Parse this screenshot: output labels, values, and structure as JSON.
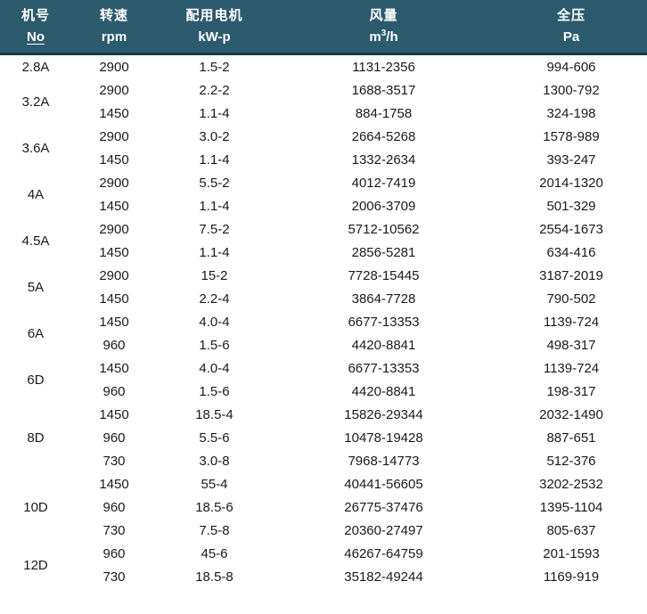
{
  "colors": {
    "header_bg": "#2d5b6e",
    "header_border": "#16384a",
    "header_text": "#ffffff",
    "body_text": "#1a1a1a"
  },
  "header": {
    "columns": [
      {
        "zh": "机号",
        "line2": "No",
        "underlined": true
      },
      {
        "zh": "转速",
        "line2": "rpm"
      },
      {
        "zh": "配用电机",
        "line2": "kW-p"
      },
      {
        "zh": "风量",
        "unit_base": "m",
        "unit_sup": "3",
        "unit_rest": "/h"
      },
      {
        "zh": "全压",
        "line2": "Pa"
      }
    ]
  },
  "groups": [
    {
      "model": "2.8A",
      "rows": [
        [
          "2900",
          "1.5-2",
          "1131-2356",
          "994-606"
        ]
      ]
    },
    {
      "model": "3.2A",
      "rows": [
        [
          "2900",
          "2.2-2",
          "1688-3517",
          "1300-792"
        ],
        [
          "1450",
          "1.1-4",
          "884-1758",
          "324-198"
        ]
      ]
    },
    {
      "model": "3.6A",
      "rows": [
        [
          "2900",
          "3.0-2",
          "2664-5268",
          "1578-989"
        ],
        [
          "1450",
          "1.1-4",
          "1332-2634",
          "393-247"
        ]
      ]
    },
    {
      "model": "4A",
      "rows": [
        [
          "2900",
          "5.5-2",
          "4012-7419",
          "2014-1320"
        ],
        [
          "1450",
          "1.1-4",
          "2006-3709",
          "501-329"
        ]
      ]
    },
    {
      "model": "4.5A",
      "rows": [
        [
          "2900",
          "7.5-2",
          "5712-10562",
          "2554-1673"
        ],
        [
          "1450",
          "1.1-4",
          "2856-5281",
          "634-416"
        ]
      ]
    },
    {
      "model": "5A",
      "rows": [
        [
          "2900",
          "15-2",
          "7728-15445",
          "3187-2019"
        ],
        [
          "1450",
          "2.2-4",
          "3864-7728",
          "790-502"
        ]
      ]
    },
    {
      "model": "6A",
      "rows": [
        [
          "1450",
          "4.0-4",
          "6677-13353",
          "1139-724"
        ],
        [
          "960",
          "1.5-6",
          "4420-8841",
          "498-317"
        ]
      ]
    },
    {
      "model": "6D",
      "rows": [
        [
          "1450",
          "4.0-4",
          "6677-13353",
          "1139-724"
        ],
        [
          "960",
          "1.5-6",
          "4420-8841",
          "198-317"
        ]
      ]
    },
    {
      "model": "8D",
      "rows": [
        [
          "1450",
          "18.5-4",
          "15826-29344",
          "2032-1490"
        ],
        [
          "960",
          "5.5-6",
          "10478-19428",
          "887-651"
        ],
        [
          "730",
          "3.0-8",
          "7968-14773",
          "512-376"
        ]
      ]
    },
    {
      "model": "10D",
      "rows": [
        [
          "1450",
          "55-4",
          "40441-56605",
          "3202-2532"
        ],
        [
          "960",
          "18.5-6",
          "26775-37476",
          "1395-1104"
        ],
        [
          "730",
          "7.5-8",
          "20360-27497",
          "805-637"
        ]
      ]
    },
    {
      "model": "12D",
      "rows": [
        [
          "960",
          "45-6",
          "46267-64759",
          "201-1593"
        ],
        [
          "730",
          "18.5-8",
          "35182-49244",
          "1169-919"
        ]
      ]
    }
  ]
}
